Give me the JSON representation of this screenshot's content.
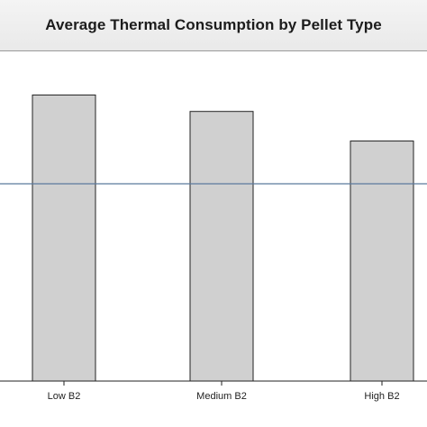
{
  "chart_data": {
    "type": "bar",
    "title": "Average Thermal Consumption by Pellet Type",
    "categories": [
      "Low B2",
      "Medium B2",
      "High B2"
    ],
    "values": [
      0.87,
      0.82,
      0.73
    ],
    "reference_line": 0.6,
    "ylim": [
      0,
      1.0
    ],
    "xlabel": "",
    "ylabel": "",
    "grid": false,
    "colors": {
      "bar_fill": "#d0d0d0",
      "bar_stroke": "#222222",
      "reference_line": "#5b7a9c",
      "axis": "#222222"
    }
  }
}
